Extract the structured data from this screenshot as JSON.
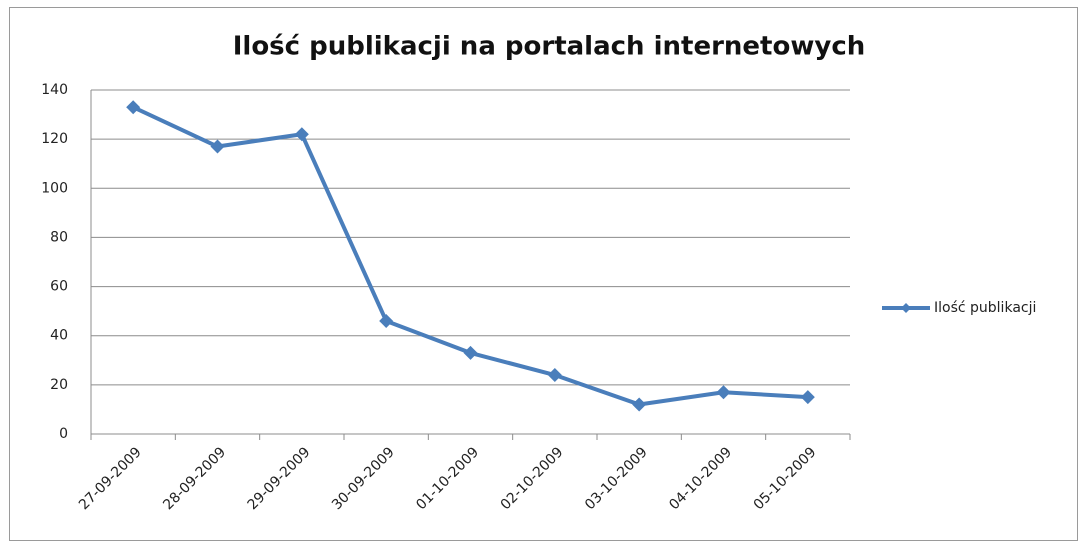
{
  "chart_data": {
    "type": "line",
    "title": "Ilość publikacji na portalach internetowych",
    "categories": [
      "27-09-2009",
      "28-09-2009",
      "29-09-2009",
      "30-09-2009",
      "01-10-2009",
      "02-10-2009",
      "03-10-2009",
      "04-10-2009",
      "05-10-2009"
    ],
    "series": [
      {
        "name": "Ilość publikacji",
        "color": "#4a7ebb",
        "values": [
          133,
          117,
          122,
          46,
          33,
          24,
          12,
          17,
          15
        ]
      }
    ],
    "ylim": [
      0,
      140
    ],
    "yticks": [
      0,
      20,
      40,
      60,
      80,
      100,
      120,
      140
    ],
    "grid": true,
    "legend": "right"
  }
}
